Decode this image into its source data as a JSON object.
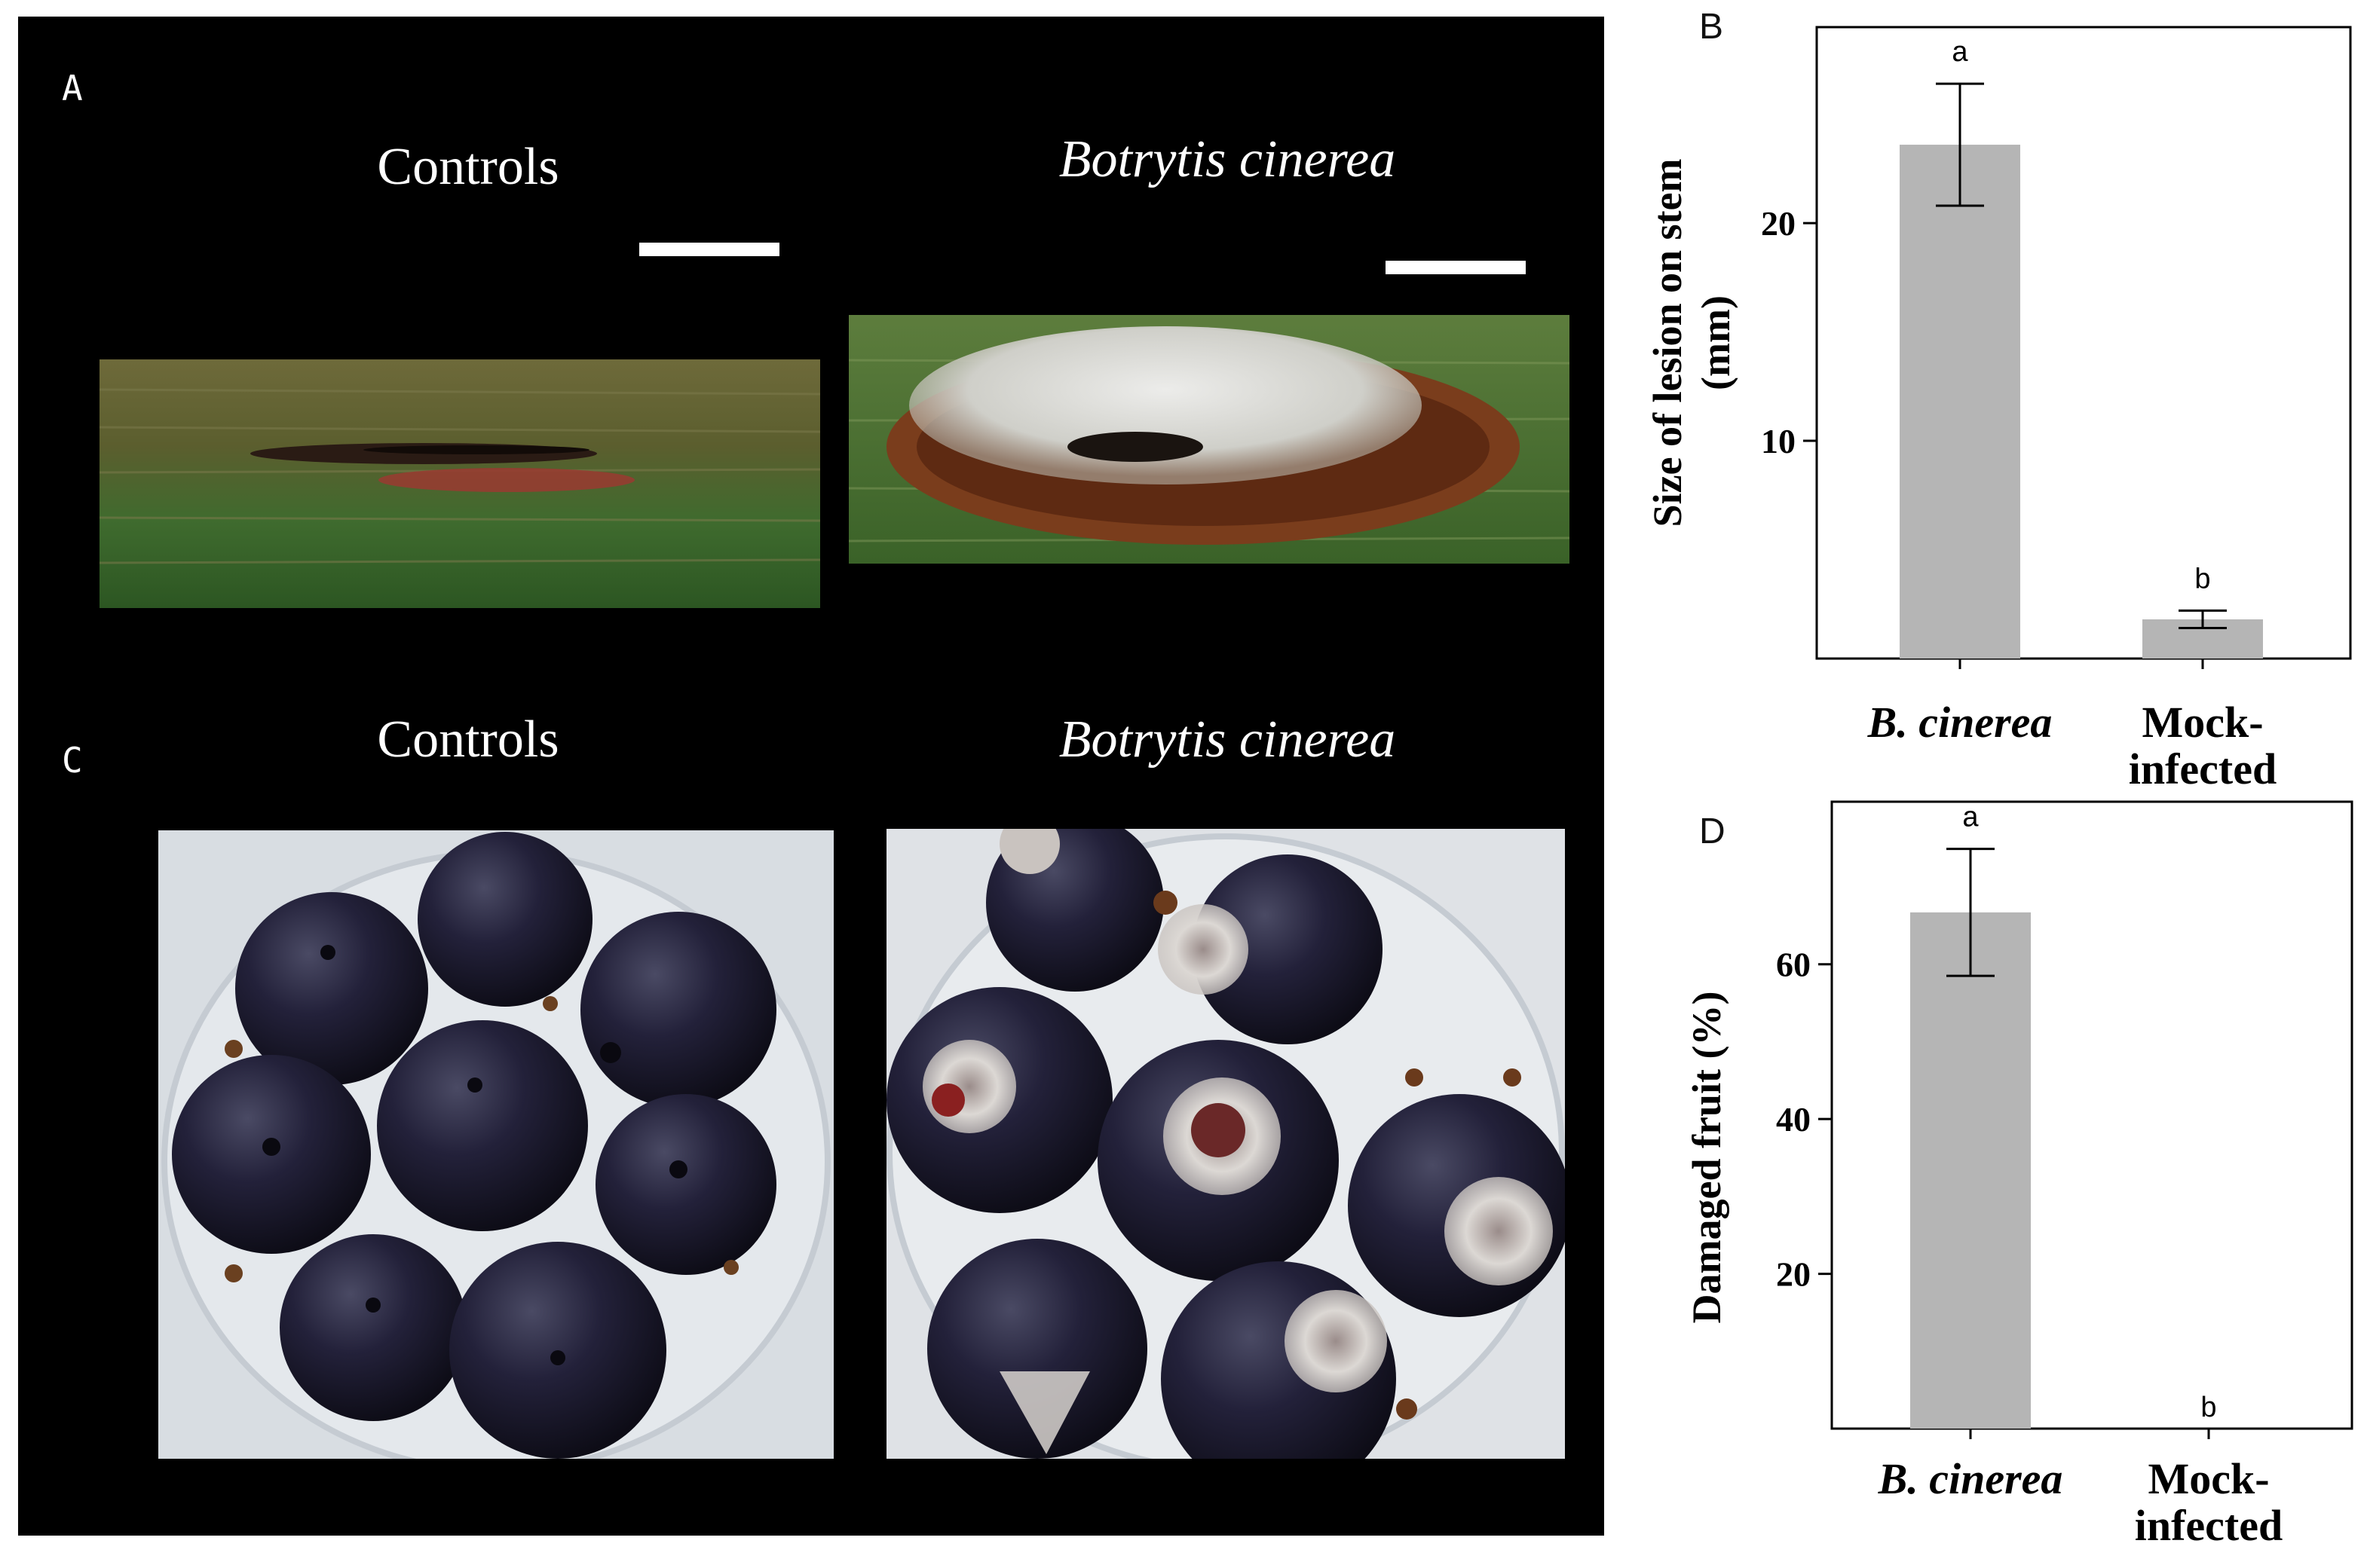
{
  "panel_a": {
    "letter": "A",
    "left_label": "Controls",
    "right_label": "Botrytis cinerea"
  },
  "panel_c": {
    "letter": "C",
    "left_label": "Controls",
    "right_label": "Botrytis cinerea"
  },
  "colors": {
    "bar": "#b5b5b5",
    "axis": "#000000",
    "photo_background": "#000000",
    "stem_green": "#3f6b2e",
    "lesion_brown": "#7a3d1c",
    "mycelium": "#d9d9d4",
    "berry": "#1c1a2c",
    "dish_background": "#d8dde2"
  },
  "chart_data": [
    {
      "panel": "B",
      "type": "bar",
      "categories": [
        "B. cinerea",
        "Mock-infected"
      ],
      "category_lines": [
        [
          "B. cinerea"
        ],
        [
          "Mock-",
          "infected"
        ]
      ],
      "values": [
        23.6,
        1.8
      ],
      "errors": [
        2.8,
        0.4
      ],
      "significance": [
        "a",
        "b"
      ],
      "ylabel": "Size of lesion on stem (mm)",
      "ylabel_lines": [
        "Size of lesion on stem",
        "(mm)"
      ],
      "yticks": [
        10,
        20
      ],
      "ylim": [
        0,
        29
      ],
      "grid": false,
      "legend": "none"
    },
    {
      "panel": "D",
      "type": "bar",
      "categories": [
        "B. cinerea",
        "Mock-infected"
      ],
      "category_lines": [
        [
          "B. cinerea"
        ],
        [
          "Mock-",
          "infected"
        ]
      ],
      "values": [
        66.7,
        0
      ],
      "errors": [
        8.2,
        0
      ],
      "significance": [
        "a",
        "b"
      ],
      "ylabel": "Damaged fruit (%)",
      "ylabel_lines": [
        "Damaged fruit (%)"
      ],
      "yticks": [
        20,
        40,
        60
      ],
      "ylim": [
        0,
        81
      ],
      "grid": false,
      "legend": "none"
    }
  ]
}
